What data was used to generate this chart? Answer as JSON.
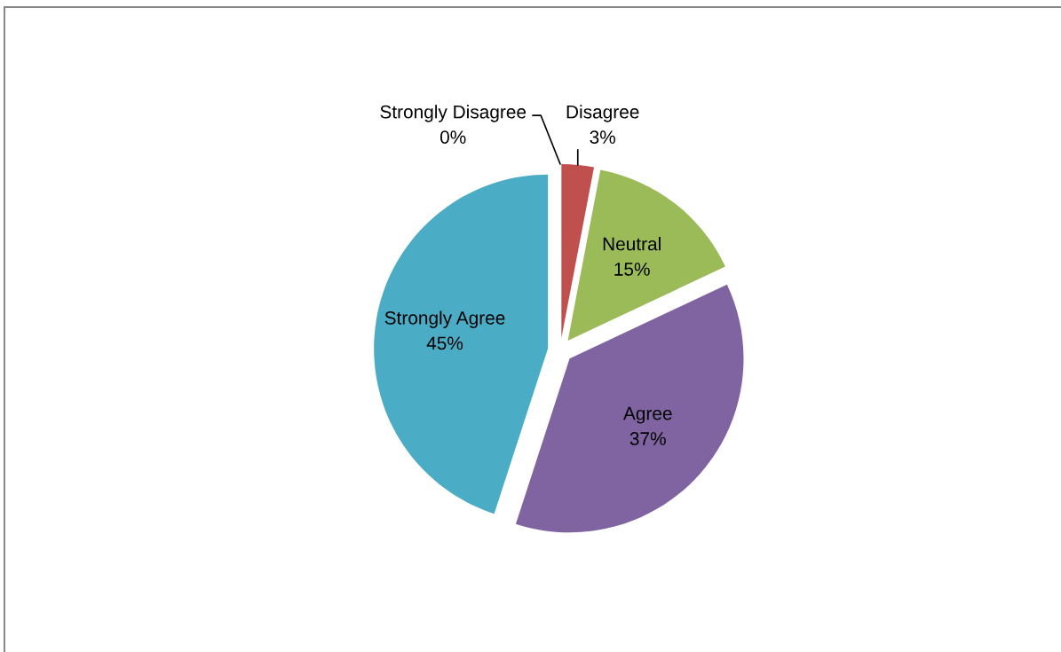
{
  "chart_data": {
    "type": "pie",
    "categories": [
      "Strongly Disagree",
      "Disagree",
      "Neutral",
      "Agree",
      "Strongly Agree"
    ],
    "values": [
      0,
      3,
      15,
      37,
      45
    ],
    "value_labels": [
      "0%",
      "3%",
      "15%",
      "37%",
      "45%"
    ],
    "colors": [
      "#4f81bd",
      "#c0504d",
      "#9bbb59",
      "#8064a2",
      "#4bacc6"
    ]
  }
}
